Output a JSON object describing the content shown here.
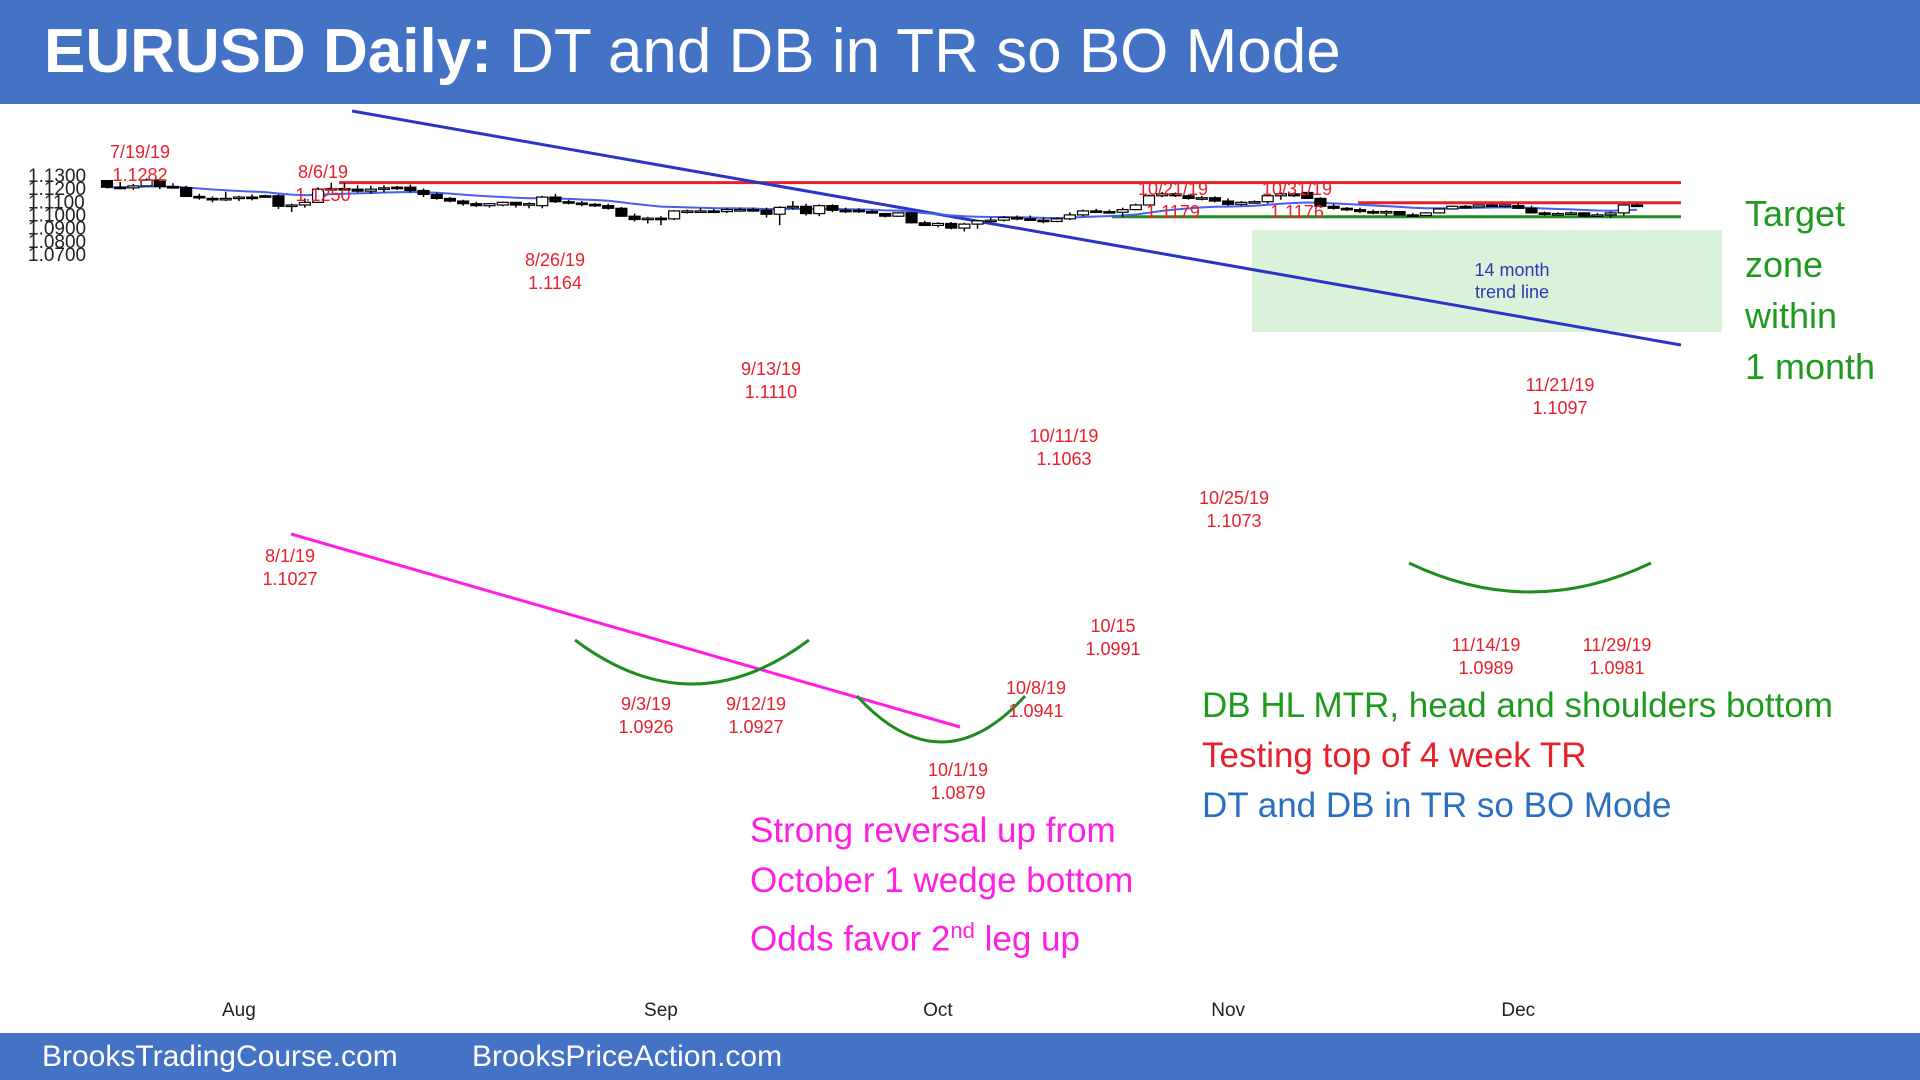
{
  "header": {
    "title_bold": "EURUSD Daily:",
    "title_rest": "DT and DB in TR so BO Mode"
  },
  "footer": {
    "left": "BrooksTradingCourse.com",
    "right": "BrooksPriceAction.com"
  },
  "colors": {
    "banner": "#4472c4",
    "label_red": "#e8202a",
    "resistance_red": "#e8202a",
    "support_green": "#1f8c1f",
    "trend_blue": "#2a35c8",
    "ema_blue": "#4a5ef0",
    "wedge_magenta": "#ff1fe0",
    "target_fill": "#d9f2d9",
    "note_green": "#1e9a1e",
    "note_red": "#e8202a",
    "note_blue": "#2a6fc0",
    "note_magenta": "#ff1fe0"
  },
  "chart_data": {
    "type": "candlestick",
    "title": "EURUSD Daily:",
    "yticks": [
      "1.1300",
      "1.1200",
      "1.1100",
      "1.1000",
      "1.0900",
      "1.0800",
      "1.0700"
    ],
    "xticks": [
      "Aug",
      "Sep",
      "Oct",
      "Nov",
      "Dec"
    ],
    "ylim": [
      1.067,
      1.1345
    ],
    "candles": [
      [
        1.1265,
        1.1268,
        1.1205,
        1.1215
      ],
      [
        1.1215,
        1.1255,
        1.12,
        1.1205
      ],
      [
        1.121,
        1.124,
        1.1195,
        1.1225
      ],
      [
        1.1225,
        1.1282,
        1.122,
        1.127
      ],
      [
        1.127,
        1.128,
        1.12,
        1.122
      ],
      [
        1.122,
        1.1245,
        1.1205,
        1.1215
      ],
      [
        1.1212,
        1.1225,
        1.114,
        1.1145
      ],
      [
        1.1145,
        1.1165,
        1.112,
        1.1135
      ],
      [
        1.113,
        1.1145,
        1.11,
        1.1125
      ],
      [
        1.1125,
        1.118,
        1.111,
        1.113
      ],
      [
        1.113,
        1.115,
        1.111,
        1.114
      ],
      [
        1.114,
        1.116,
        1.1115,
        1.1135
      ],
      [
        1.115,
        1.1158,
        1.1135,
        1.114
      ],
      [
        1.115,
        1.116,
        1.105,
        1.107
      ],
      [
        1.107,
        1.109,
        1.1027,
        1.108
      ],
      [
        1.108,
        1.113,
        1.106,
        1.11
      ],
      [
        1.11,
        1.1215,
        1.1095,
        1.12
      ],
      [
        1.12,
        1.125,
        1.119,
        1.1205
      ],
      [
        1.1205,
        1.1245,
        1.119,
        1.12
      ],
      [
        1.12,
        1.123,
        1.1175,
        1.1185
      ],
      [
        1.1185,
        1.1225,
        1.1165,
        1.12
      ],
      [
        1.12,
        1.123,
        1.1175,
        1.121
      ],
      [
        1.1215,
        1.1225,
        1.1195,
        1.1205
      ],
      [
        1.1215,
        1.1235,
        1.1175,
        1.119
      ],
      [
        1.119,
        1.1205,
        1.114,
        1.116
      ],
      [
        1.116,
        1.1175,
        1.112,
        1.113
      ],
      [
        1.113,
        1.114,
        1.11,
        1.111
      ],
      [
        1.111,
        1.112,
        1.1075,
        1.109
      ],
      [
        1.109,
        1.1105,
        1.1065,
        1.1075
      ],
      [
        1.1075,
        1.1095,
        1.106,
        1.109
      ],
      [
        1.108,
        1.1105,
        1.107,
        1.11
      ],
      [
        1.11,
        1.1105,
        1.106,
        1.108
      ],
      [
        1.108,
        1.11,
        1.1055,
        1.109
      ],
      [
        1.1075,
        1.115,
        1.1055,
        1.114
      ],
      [
        1.114,
        1.1164,
        1.1095,
        1.1105
      ],
      [
        1.1105,
        1.1118,
        1.1085,
        1.1095
      ],
      [
        1.1095,
        1.111,
        1.107,
        1.1085
      ],
      [
        1.1085,
        1.1095,
        1.1065,
        1.1075
      ],
      [
        1.1075,
        1.109,
        1.1045,
        1.1055
      ],
      [
        1.1055,
        1.1065,
        1.099,
        1.0995
      ],
      [
        1.0995,
        1.1015,
        1.0955,
        1.097
      ],
      [
        1.097,
        1.099,
        1.094,
        1.098
      ],
      [
        1.098,
        1.0995,
        1.0926,
        1.0975
      ],
      [
        1.0975,
        1.104,
        1.0965,
        1.1035
      ],
      [
        1.1035,
        1.1045,
        1.1015,
        1.1035
      ],
      [
        1.103,
        1.1055,
        1.1025,
        1.1035
      ],
      [
        1.1035,
        1.105,
        1.102,
        1.103
      ],
      [
        1.103,
        1.1055,
        1.102,
        1.1045
      ],
      [
        1.1045,
        1.106,
        1.103,
        1.1045
      ],
      [
        1.1045,
        1.106,
        1.103,
        1.104
      ],
      [
        1.104,
        1.106,
        1.0985,
        1.101
      ],
      [
        1.101,
        1.107,
        1.0927,
        1.1062
      ],
      [
        1.1062,
        1.111,
        1.1045,
        1.107
      ],
      [
        1.107,
        1.109,
        1.1,
        1.1015
      ],
      [
        1.1015,
        1.1085,
        1.0995,
        1.1075
      ],
      [
        1.1075,
        1.1085,
        1.1025,
        1.104
      ],
      [
        1.104,
        1.106,
        1.102,
        1.103
      ],
      [
        1.104,
        1.1055,
        1.102,
        1.103
      ],
      [
        1.103,
        1.1045,
        1.1015,
        1.102
      ],
      [
        1.1015,
        1.102,
        1.0985,
        1.0995
      ],
      [
        1.0995,
        1.1025,
        1.099,
        1.102
      ],
      [
        1.102,
        1.1025,
        1.094,
        1.0945
      ],
      [
        1.0945,
        1.096,
        1.092,
        1.0925
      ],
      [
        1.0925,
        1.095,
        1.091,
        1.094
      ],
      [
        1.094,
        1.095,
        1.0895,
        1.0905
      ],
      [
        1.0905,
        1.0945,
        1.0879,
        1.0935
      ],
      [
        1.0935,
        1.0965,
        1.09,
        1.096
      ],
      [
        1.096,
        1.0985,
        1.095,
        1.0965
      ],
      [
        1.0965,
        1.0995,
        1.0955,
        1.0985
      ],
      [
        1.0985,
        1.1,
        1.0965,
        1.0975
      ],
      [
        1.0975,
        1.1,
        1.096,
        1.0965
      ],
      [
        1.0965,
        1.0985,
        1.0941,
        1.0955
      ],
      [
        1.0955,
        1.0985,
        1.095,
        1.0975
      ],
      [
        1.0975,
        1.1025,
        1.0965,
        1.1005
      ],
      [
        1.1005,
        1.1045,
        1.0995,
        1.1035
      ],
      [
        1.1035,
        1.105,
        1.102,
        1.103
      ],
      [
        1.103,
        1.1045,
        1.1015,
        1.1025
      ],
      [
        1.1025,
        1.106,
        1.0991,
        1.1045
      ],
      [
        1.1045,
        1.109,
        1.104,
        1.108
      ],
      [
        1.108,
        1.116,
        1.1075,
        1.115
      ],
      [
        1.115,
        1.1179,
        1.114,
        1.1165
      ],
      [
        1.1165,
        1.1175,
        1.114,
        1.115
      ],
      [
        1.115,
        1.116,
        1.112,
        1.113
      ],
      [
        1.113,
        1.115,
        1.1115,
        1.1135
      ],
      [
        1.1135,
        1.1145,
        1.11,
        1.111
      ],
      [
        1.111,
        1.113,
        1.1073,
        1.1085
      ],
      [
        1.1085,
        1.111,
        1.1075,
        1.11
      ],
      [
        1.1095,
        1.1115,
        1.109,
        1.1105
      ],
      [
        1.1105,
        1.116,
        1.109,
        1.115
      ],
      [
        1.115,
        1.1176,
        1.112,
        1.1165
      ],
      [
        1.1165,
        1.1175,
        1.114,
        1.115
      ],
      [
        1.1175,
        1.1176,
        1.1125,
        1.113
      ],
      [
        1.113,
        1.114,
        1.106,
        1.107
      ],
      [
        1.107,
        1.109,
        1.1045,
        1.1055
      ],
      [
        1.1055,
        1.1065,
        1.1035,
        1.1045
      ],
      [
        1.1045,
        1.106,
        1.102,
        1.103
      ],
      [
        1.103,
        1.1045,
        1.101,
        1.102
      ],
      [
        1.102,
        1.104,
        1.0995,
        1.103
      ],
      [
        1.103,
        1.1035,
        1.1,
        1.1005
      ],
      [
        1.1005,
        1.102,
        1.0989,
        1.1
      ],
      [
        1.1,
        1.1025,
        1.0995,
        1.102
      ],
      [
        1.102,
        1.1055,
        1.1015,
        1.105
      ],
      [
        1.105,
        1.1075,
        1.1045,
        1.107
      ],
      [
        1.107,
        1.108,
        1.1055,
        1.1065
      ],
      [
        1.1065,
        1.1085,
        1.106,
        1.108
      ],
      [
        1.108,
        1.1087,
        1.1065,
        1.1075
      ],
      [
        1.1075,
        1.1085,
        1.106,
        1.108
      ],
      [
        1.1075,
        1.1097,
        1.105,
        1.1055
      ],
      [
        1.1055,
        1.1075,
        1.1015,
        1.102
      ],
      [
        1.102,
        1.103,
        1.1,
        1.101
      ],
      [
        1.101,
        1.1025,
        1.1,
        1.1015
      ],
      [
        1.1015,
        1.103,
        1.1005,
        1.102
      ],
      [
        1.102,
        1.1025,
        1.099,
        1.0995
      ],
      [
        1.0995,
        1.102,
        1.099,
        1.1005
      ],
      [
        1.1005,
        1.103,
        1.0981,
        1.102
      ],
      [
        1.102,
        1.1085,
        1.1,
        1.108
      ],
      [
        1.108,
        1.1087,
        1.107,
        1.1075
      ]
    ],
    "annotations": [
      {
        "date": "7/19/19",
        "price": "1.1282"
      },
      {
        "date": "8/6/19",
        "price": "1.1250"
      },
      {
        "date": "8/26/19",
        "price": "1.1164"
      },
      {
        "date": "9/13/19",
        "price": "1.1110"
      },
      {
        "date": "10/21/19",
        "price": "1.1179"
      },
      {
        "date": "10/31/19",
        "price": "1.1176"
      },
      {
        "date": "10/11/19",
        "price": "1.1063"
      },
      {
        "date": "10/25/19",
        "price": "1.1073"
      },
      {
        "date": "11/21/19",
        "price": "1.1097"
      },
      {
        "date": "8/1/19",
        "price": "1.1027"
      },
      {
        "date": "10/15",
        "price": "1.0991"
      },
      {
        "date": "11/14/19",
        "price": "1.0989"
      },
      {
        "date": "11/29/19",
        "price": "1.0981"
      },
      {
        "date": "9/3/19",
        "price": "1.0926"
      },
      {
        "date": "9/12/19",
        "price": "1.0927"
      },
      {
        "date": "10/8/19",
        "price": "1.0941"
      },
      {
        "date": "10/1/19",
        "price": "1.0879"
      }
    ],
    "trend_label": [
      "14 month",
      "trend line"
    ],
    "target_text": [
      "Target",
      "zone",
      "within",
      "1 month"
    ],
    "notes_right": [
      "DB HL MTR, head and shoulders bottom",
      "Testing top of 4 week TR",
      "DT and DB in TR so BO Mode"
    ],
    "notes_magenta": [
      "Strong reversal up from",
      "October 1 wedge bottom",
      "Odds favor 2",
      "nd",
      " leg up"
    ]
  }
}
